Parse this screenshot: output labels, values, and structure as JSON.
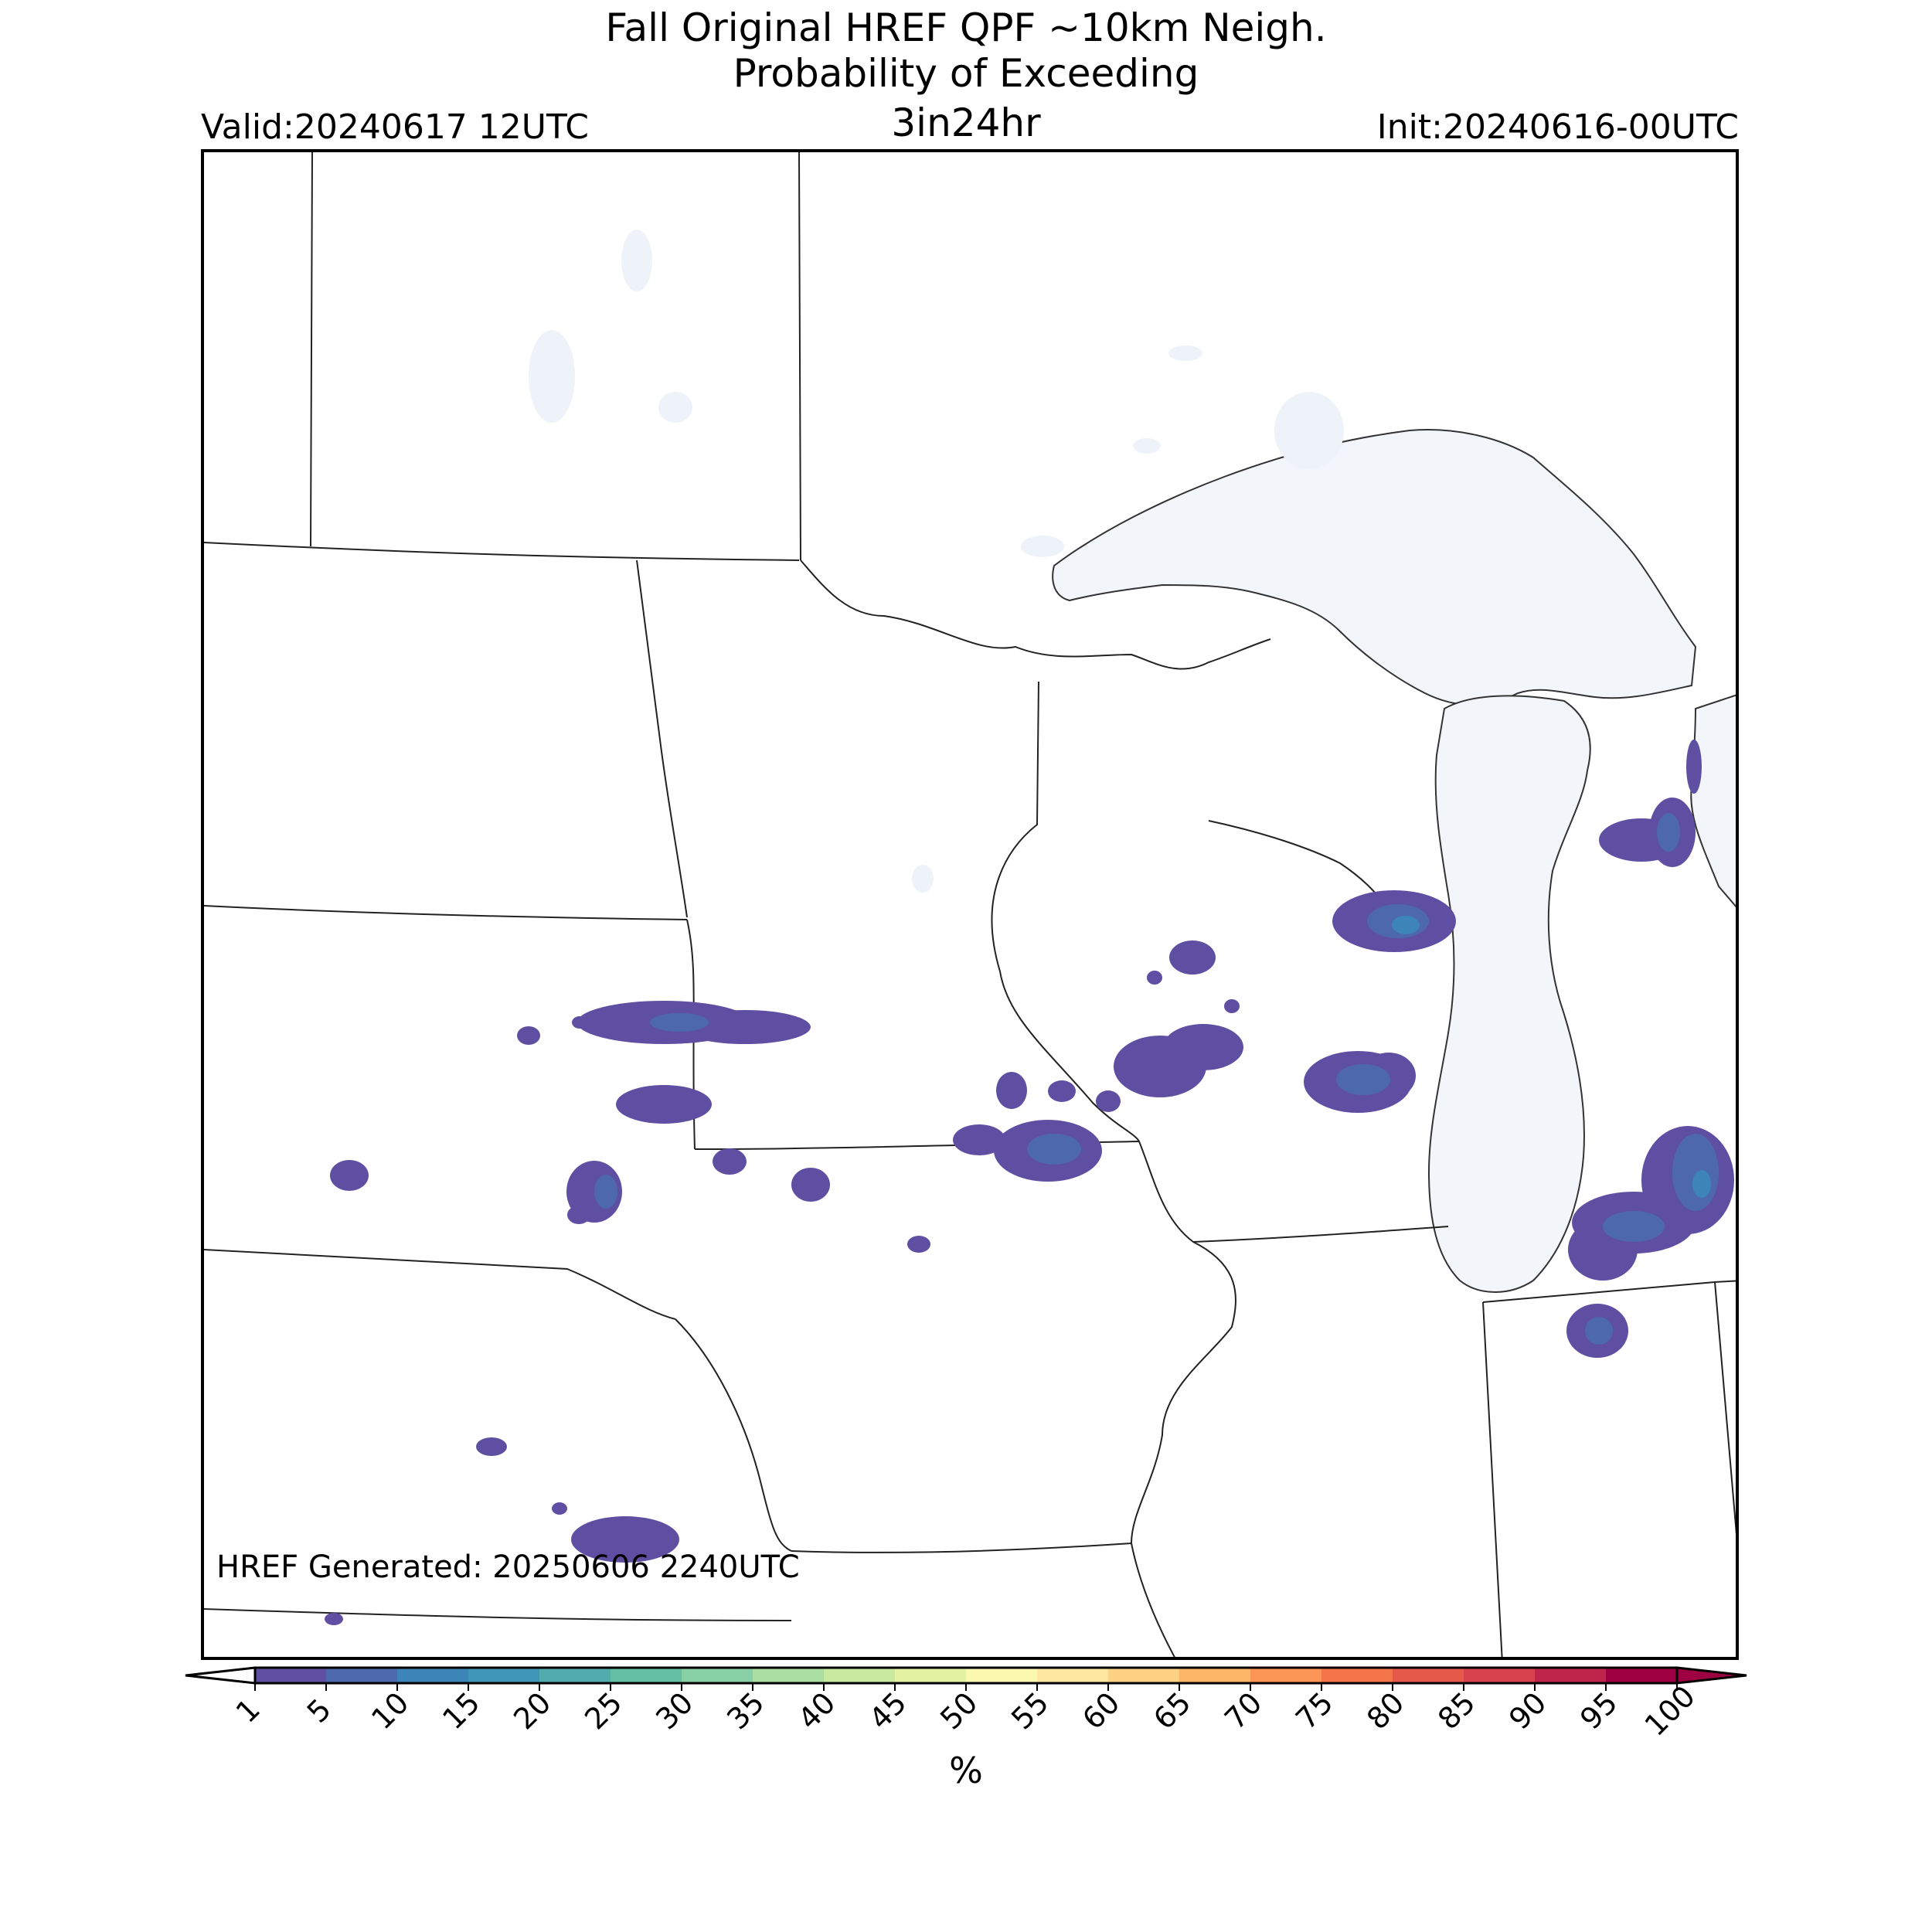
{
  "header": {
    "title_line1": "Fall Original HREF QPF ~10km Neigh.",
    "title_line2": "Probability of Exceeding",
    "title_line3": "3in24hr",
    "valid": "Valid:20240617 12UTC",
    "init": "Init:20240616-00UTC"
  },
  "map": {
    "generated": "HREF Generated: 20250606 2240UTC",
    "water_color": "#f2f6fb",
    "border_color": "#222222"
  },
  "colorbar": {
    "unit": "%",
    "ticks": [
      "1",
      "5",
      "10",
      "15",
      "20",
      "25",
      "30",
      "35",
      "40",
      "45",
      "50",
      "55",
      "60",
      "65",
      "70",
      "75",
      "80",
      "85",
      "90",
      "95",
      "100"
    ],
    "colors": [
      "#5e4fa2",
      "#4d68ad",
      "#3d84b8",
      "#3f97b7",
      "#52acad",
      "#65bfa4",
      "#87cfa4",
      "#a9ddA2",
      "#c7e9a0",
      "#e3f3a1",
      "#fbf8b0",
      "#fee8a1",
      "#fed284",
      "#fdb567",
      "#fb9656",
      "#f47548",
      "#e55949",
      "#d7424c",
      "#be254b",
      "#9e0142"
    ]
  }
}
